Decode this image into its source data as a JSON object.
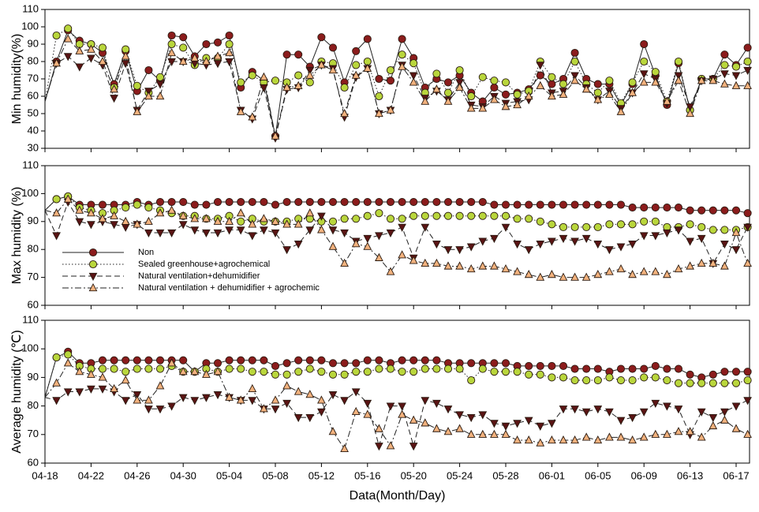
{
  "chart_data": [
    {
      "type": "line",
      "y_label": "Min humidity(%)",
      "ylim": [
        30,
        110
      ],
      "yticks": [
        30,
        40,
        50,
        60,
        70,
        80,
        90,
        100,
        110
      ],
      "series": [
        {
          "color": "#8b1c1c",
          "marker": "circle",
          "dash": "solid",
          "values": [
            57,
            80,
            98,
            92,
            90,
            85,
            67,
            86,
            63,
            75,
            69,
            95,
            94,
            83,
            90,
            91,
            95,
            65,
            74,
            69,
            37,
            84,
            84,
            77,
            94,
            88,
            68,
            86,
            93,
            70,
            69,
            93,
            82,
            65,
            70,
            68,
            72,
            62,
            57,
            65,
            61,
            62,
            64,
            72,
            67,
            70,
            85,
            70,
            67,
            67,
            55,
            67,
            90,
            72,
            55,
            79,
            52,
            70,
            70,
            84,
            78,
            88
          ]
        },
        {
          "color": "#b9d63c",
          "marker": "circle",
          "dash": "dot",
          "values": [
            57,
            95,
            99,
            90,
            90,
            88,
            65,
            87,
            66,
            62,
            71,
            90,
            88,
            78,
            82,
            82,
            90,
            68,
            72,
            68,
            69,
            68,
            72,
            68,
            80,
            79,
            65,
            78,
            80,
            60,
            75,
            84,
            79,
            62,
            73,
            62,
            75,
            60,
            71,
            69,
            68,
            61,
            63,
            80,
            71,
            67,
            80,
            67,
            62,
            69,
            56,
            68,
            80,
            74,
            57,
            80,
            52,
            70,
            70,
            78,
            77,
            80
          ]
        },
        {
          "color": "#5a1414",
          "marker": "triangle-down",
          "dash": "dash",
          "values": [
            57,
            79,
            83,
            77,
            82,
            78,
            59,
            79,
            52,
            63,
            67,
            80,
            80,
            79,
            78,
            79,
            80,
            52,
            47,
            65,
            36,
            64,
            65,
            75,
            78,
            76,
            48,
            71,
            76,
            50,
            52,
            78,
            72,
            59,
            63,
            58,
            68,
            55,
            54,
            60,
            56,
            57,
            58,
            78,
            62,
            63,
            72,
            65,
            58,
            63,
            53,
            62,
            73,
            70,
            56,
            72,
            54,
            69,
            70,
            73,
            72,
            75
          ]
        },
        {
          "color": "#f2b27e",
          "marker": "triangle-up",
          "dash": "dashdot",
          "values": [
            57,
            79,
            93,
            86,
            87,
            80,
            64,
            83,
            51,
            60,
            60,
            85,
            80,
            82,
            80,
            83,
            85,
            51,
            48,
            71,
            37,
            65,
            66,
            72,
            78,
            75,
            50,
            72,
            76,
            50,
            52,
            77,
            68,
            57,
            64,
            57,
            65,
            53,
            53,
            58,
            54,
            55,
            60,
            66,
            60,
            61,
            69,
            64,
            58,
            61,
            51,
            62,
            68,
            68,
            57,
            69,
            50,
            69,
            69,
            67,
            66,
            66
          ]
        }
      ]
    },
    {
      "type": "line",
      "y_label": "Max humidity (%)",
      "ylim": [
        60,
        110
      ],
      "yticks": [
        60,
        70,
        80,
        90,
        100,
        110
      ],
      "legend": "lower left",
      "series": [
        {
          "name": "Non",
          "color": "#8b1c1c",
          "marker": "circle",
          "dash": "solid",
          "values": [
            94,
            98,
            99,
            96,
            96,
            96,
            96,
            96,
            97,
            96,
            97,
            97,
            97,
            96,
            96,
            97,
            97,
            97,
            97,
            97,
            96,
            97,
            97,
            97,
            97,
            97,
            97,
            97,
            97,
            97,
            97,
            97,
            97,
            97,
            97,
            97,
            97,
            97,
            97,
            96,
            96,
            96,
            96,
            96,
            96,
            96,
            96,
            96,
            96,
            96,
            96,
            95,
            95,
            95,
            95,
            95,
            94,
            94,
            94,
            94,
            94,
            93
          ]
        },
        {
          "name": "Sealed greenhouse+agrochemical",
          "color": "#b9d63c",
          "marker": "circle",
          "dash": "dot",
          "values": [
            94,
            98,
            99,
            95,
            94,
            93,
            94,
            95,
            96,
            95,
            94,
            93,
            92,
            92,
            91,
            91,
            92,
            90,
            91,
            90,
            90,
            90,
            91,
            91,
            90,
            90,
            91,
            91,
            92,
            93,
            91,
            91,
            92,
            92,
            92,
            92,
            92,
            92,
            92,
            92,
            92,
            91,
            91,
            90,
            89,
            88,
            88,
            88,
            88,
            89,
            89,
            89,
            90,
            90,
            88,
            88,
            89,
            88,
            87,
            87,
            87,
            88
          ]
        },
        {
          "name": "Natural ventilation+dehumidifier",
          "color": "#5a1414",
          "marker": "triangle-down",
          "dash": "dash",
          "values": [
            94,
            85,
            97,
            90,
            89,
            90,
            89,
            88,
            89,
            86,
            86,
            86,
            89,
            87,
            86,
            86,
            87,
            87,
            85,
            87,
            86,
            80,
            82,
            87,
            92,
            87,
            86,
            83,
            84,
            85,
            86,
            88,
            77,
            88,
            82,
            80,
            80,
            81,
            83,
            84,
            88,
            82,
            80,
            82,
            83,
            84,
            83,
            84,
            82,
            80,
            81,
            82,
            85,
            85,
            86,
            87,
            83,
            84,
            75,
            82,
            80,
            88
          ]
        },
        {
          "name": "Natural ventilation + dehumidifier + agrochemic",
          "color": "#f2b27e",
          "marker": "triangle-up",
          "dash": "dashdot",
          "values": [
            94,
            93,
            98,
            94,
            93,
            91,
            92,
            90,
            89,
            90,
            93,
            94,
            92,
            91,
            91,
            90,
            90,
            93,
            89,
            91,
            90,
            89,
            89,
            93,
            87,
            81,
            75,
            82,
            81,
            77,
            72,
            78,
            76,
            75,
            75,
            74,
            74,
            73,
            74,
            74,
            73,
            72,
            71,
            70,
            71,
            70,
            70,
            70,
            71,
            72,
            73,
            71,
            72,
            72,
            71,
            73,
            74,
            75,
            75,
            74,
            86,
            75
          ]
        }
      ]
    },
    {
      "type": "line",
      "y_label": "Average humidity (℃)",
      "x_label": "Data(Month/Day)",
      "ylim": [
        60,
        110
      ],
      "yticks": [
        60,
        70,
        80,
        90,
        100,
        110
      ],
      "categories": [
        "04-18",
        null,
        null,
        null,
        "04-22",
        null,
        null,
        null,
        "04-26",
        null,
        null,
        null,
        "04-30",
        null,
        null,
        null,
        "05-04",
        null,
        null,
        null,
        "05-08",
        null,
        null,
        null,
        "05-12",
        null,
        null,
        null,
        "05-16",
        null,
        null,
        null,
        "05-20",
        null,
        null,
        null,
        "05-24",
        null,
        null,
        null,
        "05-28",
        null,
        null,
        null,
        "06-01",
        null,
        null,
        null,
        "06-05",
        null,
        null,
        null,
        "06-09",
        null,
        null,
        null,
        "06-13",
        null,
        null,
        null,
        "06-17",
        null
      ],
      "series": [
        {
          "color": "#8b1c1c",
          "marker": "circle",
          "dash": "solid",
          "values": [
            83,
            97,
            99,
            95,
            95,
            96,
            96,
            96,
            96,
            96,
            96,
            96,
            96,
            92,
            95,
            95,
            96,
            96,
            96,
            96,
            94,
            95,
            96,
            96,
            96,
            95,
            95,
            95,
            96,
            96,
            95,
            96,
            96,
            96,
            96,
            95,
            95,
            95,
            95,
            95,
            95,
            94,
            94,
            94,
            94,
            94,
            93,
            93,
            93,
            92,
            93,
            93,
            93,
            94,
            93,
            93,
            91,
            90,
            91,
            92,
            92,
            92
          ]
        },
        {
          "color": "#b9d63c",
          "marker": "circle",
          "dash": "dot",
          "values": [
            83,
            97,
            98,
            94,
            93,
            93,
            93,
            92,
            93,
            93,
            93,
            94,
            92,
            92,
            93,
            92,
            93,
            93,
            92,
            92,
            91,
            91,
            92,
            93,
            92,
            91,
            91,
            92,
            92,
            93,
            93,
            92,
            92,
            93,
            93,
            93,
            93,
            89,
            93,
            92,
            92,
            92,
            91,
            91,
            90,
            90,
            89,
            89,
            89,
            90,
            89,
            89,
            90,
            90,
            89,
            88,
            88,
            88,
            88,
            88,
            88,
            89
          ]
        },
        {
          "color": "#5a1414",
          "marker": "triangle-down",
          "dash": "dash",
          "values": [
            83,
            82,
            85,
            85,
            86,
            86,
            85,
            82,
            84,
            79,
            79,
            80,
            83,
            82,
            83,
            84,
            83,
            82,
            82,
            79,
            79,
            81,
            76,
            76,
            78,
            84,
            82,
            85,
            81,
            66,
            80,
            80,
            66,
            82,
            81,
            79,
            77,
            76,
            77,
            74,
            73,
            74,
            75,
            73,
            74,
            79,
            79,
            78,
            79,
            78,
            75,
            76,
            78,
            81,
            80,
            79,
            70,
            78,
            76,
            78,
            80,
            82
          ]
        },
        {
          "color": "#f2b27e",
          "marker": "triangle-up",
          "dash": "dashdot",
          "values": [
            83,
            88,
            95,
            92,
            91,
            90,
            86,
            89,
            82,
            82,
            87,
            95,
            92,
            92,
            91,
            92,
            83,
            82,
            86,
            79,
            82,
            87,
            85,
            84,
            82,
            71,
            65,
            78,
            77,
            72,
            66,
            77,
            75,
            74,
            72,
            71,
            72,
            70,
            70,
            70,
            70,
            68,
            68,
            67,
            68,
            68,
            68,
            69,
            68,
            69,
            69,
            68,
            69,
            70,
            70,
            71,
            71,
            69,
            73,
            75,
            72,
            70
          ]
        }
      ]
    }
  ]
}
